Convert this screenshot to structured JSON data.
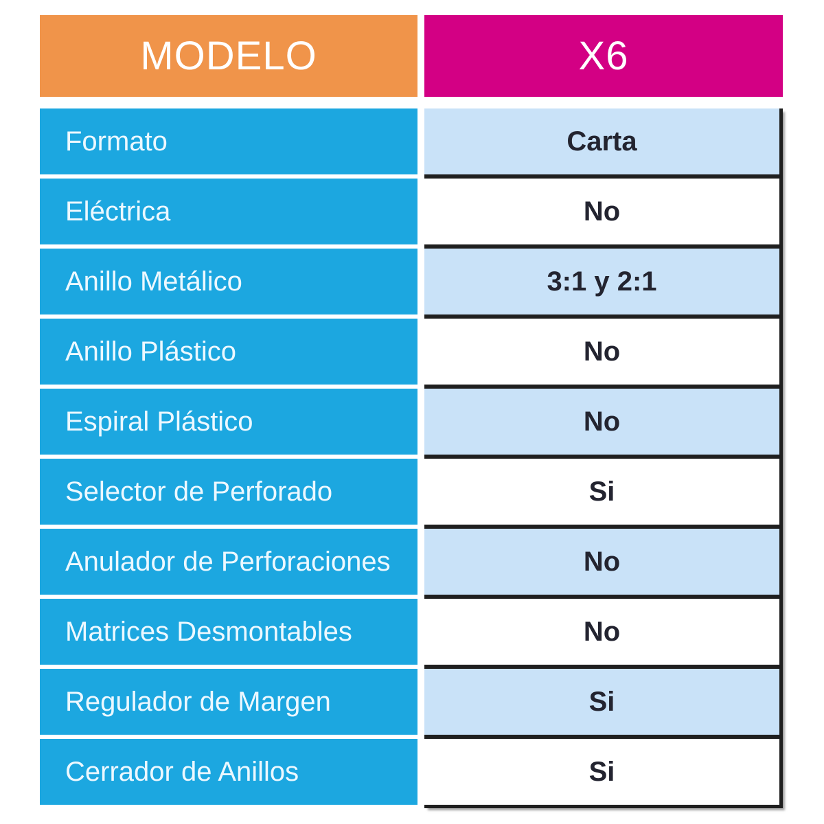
{
  "table": {
    "header": {
      "model_label": "MODELO",
      "model_value": "X6"
    },
    "rows": [
      {
        "label": "Formato",
        "value": "Carta"
      },
      {
        "label": "Eléctrica",
        "value": "No"
      },
      {
        "label": "Anillo Metálico",
        "value": "3:1 y 2:1"
      },
      {
        "label": "Anillo Plástico",
        "value": "No"
      },
      {
        "label": "Espiral Plástico",
        "value": "No"
      },
      {
        "label": "Selector de Perforado",
        "value": "Si"
      },
      {
        "label": "Anulador de Perforaciones",
        "value": "No"
      },
      {
        "label": "Matrices Desmontables",
        "value": "No"
      },
      {
        "label": "Regulador de Margen",
        "value": "Si"
      },
      {
        "label": "Cerrador de Anillos",
        "value": "Si"
      }
    ]
  },
  "colors": {
    "header_left_bg": "#F0944A",
    "header_right_bg": "#D30084",
    "feature_bg": "#1CA7E0",
    "value_alt_bg": "#C9E2F8",
    "value_bg": "#FFFFFF",
    "border": "#1F1F1F",
    "value_text": "#232430",
    "feature_text": "#ECF8FF",
    "header_text": "#FFFFFF"
  }
}
